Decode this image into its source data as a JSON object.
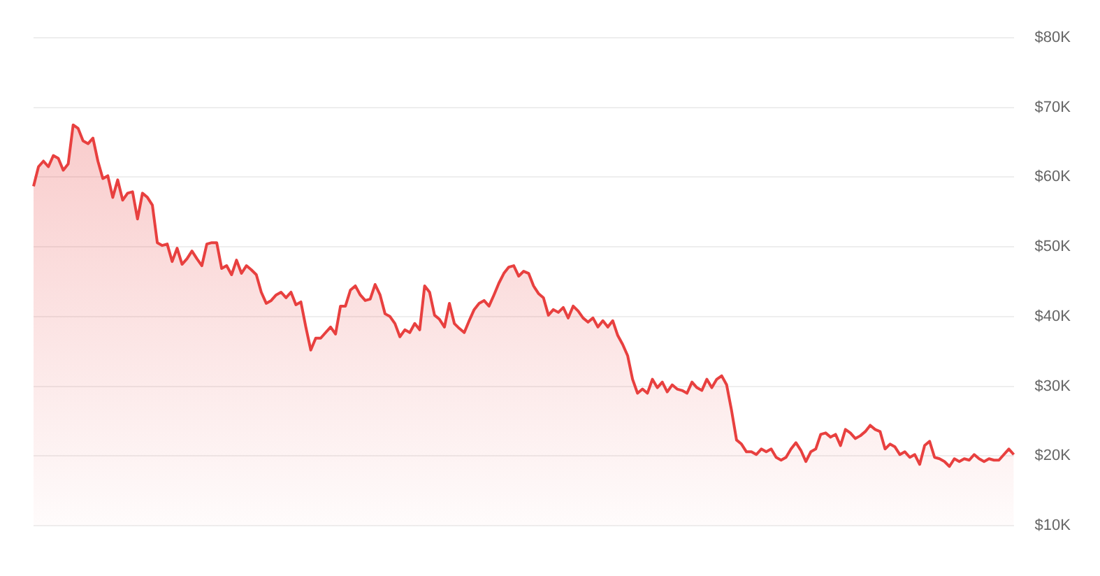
{
  "chart_data": {
    "type": "area",
    "categories": [
      null,
      null,
      null,
      null,
      null,
      null,
      null,
      null,
      null,
      null,
      null,
      null,
      null,
      null,
      null,
      null,
      null,
      null,
      null,
      null,
      null,
      null,
      null,
      null,
      null,
      null,
      null,
      null,
      null,
      null,
      null,
      null,
      null,
      null,
      null,
      null,
      null,
      null,
      null,
      null,
      null,
      null,
      null,
      null,
      null,
      null,
      null,
      null,
      null,
      null,
      null,
      null,
      null,
      null,
      null,
      null,
      null,
      null,
      null,
      null,
      null,
      null,
      null,
      null,
      null,
      null,
      null,
      null,
      null,
      null,
      null,
      null,
      null,
      null,
      null,
      null,
      null,
      null,
      null,
      null,
      null,
      null,
      null,
      null,
      null,
      null,
      null,
      null,
      null,
      null,
      null,
      null,
      null,
      null,
      null,
      null,
      null,
      null,
      null,
      null,
      null,
      null,
      null,
      null,
      null,
      null,
      null,
      null,
      null,
      null,
      null,
      null,
      null,
      null,
      null,
      null,
      null,
      null,
      null,
      null,
      null,
      null,
      null,
      null,
      null,
      null,
      null,
      null,
      null,
      null,
      null,
      null,
      null,
      null,
      null,
      null,
      null,
      null,
      null,
      null,
      null,
      null,
      null,
      null,
      null,
      null,
      null,
      null,
      null,
      null,
      null,
      null,
      null,
      null,
      null,
      null,
      null,
      null,
      null,
      null,
      null,
      null,
      null,
      null,
      null,
      null,
      null,
      null,
      null,
      null,
      null,
      null,
      null,
      null,
      null,
      null,
      null,
      null,
      null,
      null,
      null,
      null,
      null,
      null,
      null,
      null,
      null,
      null,
      null,
      null,
      null,
      null,
      null,
      null,
      null,
      null,
      null,
      null,
      null
    ],
    "series": [
      {
        "color": "#e8403f",
        "values": [
          58700,
          61500,
          62300,
          61500,
          63100,
          62700,
          61000,
          61900,
          67500,
          67000,
          65200,
          64800,
          65600,
          62300,
          59800,
          60200,
          57100,
          59600,
          56700,
          57700,
          57900,
          54000,
          57700,
          57100,
          56000,
          50600,
          50200,
          50400,
          47900,
          49800,
          47500,
          48300,
          49400,
          48300,
          47300,
          50400,
          50600,
          50600,
          46900,
          47300,
          46000,
          48100,
          46200,
          47300,
          46700,
          46000,
          43500,
          41900,
          42300,
          43100,
          43500,
          42700,
          43500,
          41700,
          42100,
          38500,
          35200,
          36900,
          36900,
          37700,
          38500,
          37500,
          41500,
          41500,
          43800,
          44400,
          43100,
          42300,
          42500,
          44600,
          43100,
          40400,
          40000,
          39000,
          37100,
          38100,
          37700,
          39000,
          38100,
          44400,
          43500,
          40200,
          39600,
          38500,
          41900,
          39000,
          38300,
          37700,
          39400,
          41000,
          41900,
          42300,
          41500,
          43100,
          44800,
          46200,
          47100,
          47300,
          45800,
          46500,
          46200,
          44400,
          43300,
          42700,
          40200,
          41000,
          40600,
          41300,
          39800,
          41500,
          40800,
          39800,
          39200,
          39800,
          38500,
          39400,
          38500,
          39400,
          37300,
          36000,
          34400,
          31000,
          29000,
          29600,
          29000,
          31000,
          29800,
          30600,
          29200,
          30200,
          29600,
          29400,
          29000,
          30600,
          29800,
          29400,
          31000,
          29800,
          31000,
          31500,
          30200,
          26500,
          22300,
          21700,
          20600,
          20600,
          20200,
          21000,
          20600,
          21000,
          19800,
          19400,
          19800,
          21000,
          21900,
          20800,
          19200,
          20600,
          21000,
          23100,
          23300,
          22700,
          23100,
          21500,
          23800,
          23300,
          22500,
          22900,
          23500,
          24400,
          23800,
          23500,
          21000,
          21700,
          21300,
          20200,
          20600,
          19800,
          20200,
          18800,
          21500,
          22100,
          19800,
          19600,
          19200,
          18500,
          19600,
          19200,
          19600,
          19400,
          20200,
          19600,
          19200,
          19600,
          19400,
          19400,
          20200,
          21000,
          20200
        ]
      }
    ],
    "ylim": [
      10000,
      80000
    ],
    "yticks": [
      {
        "value": 10000,
        "label": "$10K"
      },
      {
        "value": 20000,
        "label": "$20K"
      },
      {
        "value": 30000,
        "label": "$30K"
      },
      {
        "value": 40000,
        "label": "$40K"
      },
      {
        "value": 50000,
        "label": "$50K"
      },
      {
        "value": 60000,
        "label": "$60K"
      },
      {
        "value": 70000,
        "label": "$70K"
      },
      {
        "value": 80000,
        "label": "$80K"
      }
    ],
    "grid": "y",
    "legend": false,
    "tick_labels": "y",
    "marker": "none",
    "line_style": "solid"
  }
}
